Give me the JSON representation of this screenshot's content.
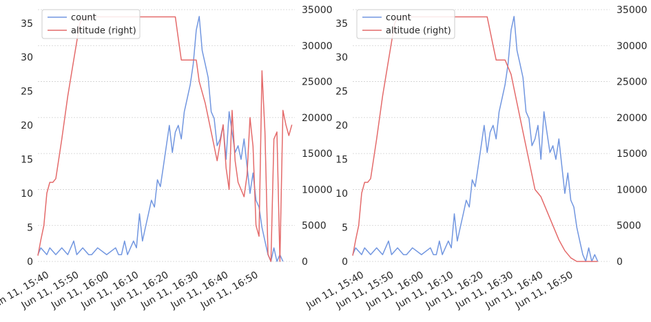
{
  "colors": {
    "count": "#7196e0",
    "altitude": "#e46a6a",
    "grid": "#cfcfcf",
    "text": "#262626",
    "legend_border": "#cccccc"
  },
  "chart_data": [
    {
      "type": "line",
      "panel": "left",
      "grid": "horizontal",
      "legend": "top-left",
      "legend_entries": [
        "count",
        "altitude (right)"
      ],
      "x_ticks": [
        "Jun 11, 15:40",
        "Jun 11, 15:50",
        "Jun 11, 16:00",
        "Jun 11, 16:10",
        "Jun 11, 16:20",
        "Jun 11, 16:30",
        "Jun 11, 16:40",
        "Jun 11, 16:50"
      ],
      "y_left_ticks": [
        "0",
        "5",
        "10",
        "15",
        "20",
        "25",
        "30",
        "35"
      ],
      "y_right_ticks": [
        "0",
        "5000",
        "10000",
        "15000",
        "20000",
        "25000",
        "30000",
        "35000"
      ],
      "ylim_left": [
        0,
        37
      ],
      "ylim_right": [
        0,
        35000
      ],
      "series": [
        {
          "name": "count",
          "axis": "left",
          "x": [
            "15:37",
            "15:38",
            "15:40",
            "15:41",
            "15:43",
            "15:45",
            "15:47",
            "15:49",
            "15:50",
            "15:52",
            "15:54",
            "15:55",
            "15:57",
            "16:00",
            "16:03",
            "16:04",
            "16:05",
            "16:06",
            "16:07",
            "16:09",
            "16:10",
            "16:11",
            "16:12",
            "16:13",
            "16:14",
            "16:15",
            "16:16",
            "16:17",
            "16:18",
            "16:19",
            "16:20",
            "16:21",
            "16:22",
            "16:23",
            "16:24",
            "16:25",
            "16:26",
            "16:27",
            "16:28",
            "16:29",
            "16:30",
            "16:31",
            "16:32",
            "16:33",
            "16:34",
            "16:35",
            "16:36",
            "16:37",
            "16:38",
            "16:39",
            "16:40",
            "16:41",
            "16:42",
            "16:43",
            "16:44",
            "16:45",
            "16:46",
            "16:47",
            "16:48",
            "16:49",
            "16:50",
            "16:51",
            "16:52",
            "16:53",
            "16:54",
            "16:55",
            "16:56",
            "16:57",
            "16:58",
            "16:59"
          ],
          "y": [
            1,
            2,
            1,
            2,
            1,
            2,
            1,
            3,
            1,
            2,
            1,
            1,
            2,
            1,
            2,
            1,
            1,
            3,
            1,
            3,
            2,
            7,
            3,
            5,
            7,
            9,
            8,
            12,
            11,
            14,
            17,
            20,
            16,
            19,
            20,
            18,
            22,
            24,
            26,
            29,
            34,
            36,
            31,
            29,
            27,
            22,
            21,
            17,
            18,
            20,
            15,
            22,
            19,
            16,
            17,
            15,
            18,
            14,
            10,
            13,
            9,
            8,
            5,
            3,
            1,
            0,
            2,
            0,
            1,
            0
          ]
        },
        {
          "name": "altitude (right)",
          "axis": "right",
          "x": [
            "15:37",
            "15:38",
            "15:39",
            "15:40",
            "15:41",
            "15:42",
            "15:43",
            "15:45",
            "15:47",
            "15:49",
            "15:51",
            "15:52",
            "15:55",
            "16:00",
            "16:05",
            "16:10",
            "16:15",
            "16:20",
            "16:23",
            "16:24",
            "16:25",
            "16:26",
            "16:27",
            "16:28",
            "16:30",
            "16:31",
            "16:33",
            "16:35",
            "16:37",
            "16:39",
            "16:40",
            "16:41",
            "16:42",
            "16:43",
            "16:44",
            "16:45",
            "16:46",
            "16:47",
            "16:48",
            "16:49",
            "16:50",
            "16:51",
            "16:52",
            "16:53",
            "16:54",
            "16:55",
            "16:56",
            "16:57",
            "16:58",
            "16:59",
            "17:00",
            "17:01",
            "17:02"
          ],
          "y": [
            800,
            3000,
            5000,
            9500,
            11000,
            11000,
            11500,
            17000,
            23000,
            28000,
            33000,
            34000,
            34000,
            34000,
            34000,
            34000,
            34000,
            34000,
            34000,
            31000,
            28000,
            28000,
            28000,
            28000,
            28000,
            25000,
            22000,
            18000,
            14000,
            19000,
            13000,
            10000,
            21000,
            14000,
            11000,
            10000,
            9000,
            12000,
            20000,
            16000,
            5000,
            3500,
            26500,
            18000,
            1000,
            0,
            17000,
            18000,
            0,
            21000,
            19000,
            17500,
            19000
          ]
        }
      ]
    },
    {
      "type": "line",
      "panel": "right",
      "grid": "horizontal",
      "legend": "top-left",
      "legend_entries": [
        "count",
        "altitude (right)"
      ],
      "x_ticks": [
        "Jun 11, 15:40",
        "Jun 11, 15:50",
        "Jun 11, 16:00",
        "Jun 11, 16:10",
        "Jun 11, 16:20",
        "Jun 11, 16:30",
        "Jun 11, 16:40",
        "Jun 11, 16:50"
      ],
      "y_left_ticks": [
        "0",
        "5",
        "10",
        "15",
        "20",
        "25",
        "30",
        "35"
      ],
      "y_right_ticks": [
        "0",
        "5000",
        "10000",
        "15000",
        "20000",
        "25000",
        "30000",
        "35000"
      ],
      "ylim_left": [
        0,
        37
      ],
      "ylim_right": [
        0,
        35000
      ],
      "series": [
        {
          "name": "count",
          "axis": "left",
          "x": [
            "15:37",
            "15:38",
            "15:40",
            "15:41",
            "15:43",
            "15:45",
            "15:47",
            "15:49",
            "15:50",
            "15:52",
            "15:54",
            "15:55",
            "15:57",
            "16:00",
            "16:03",
            "16:04",
            "16:05",
            "16:06",
            "16:07",
            "16:09",
            "16:10",
            "16:11",
            "16:12",
            "16:13",
            "16:14",
            "16:15",
            "16:16",
            "16:17",
            "16:18",
            "16:19",
            "16:20",
            "16:21",
            "16:22",
            "16:23",
            "16:24",
            "16:25",
            "16:26",
            "16:27",
            "16:28",
            "16:29",
            "16:30",
            "16:31",
            "16:32",
            "16:33",
            "16:34",
            "16:35",
            "16:36",
            "16:37",
            "16:38",
            "16:39",
            "16:40",
            "16:41",
            "16:42",
            "16:43",
            "16:44",
            "16:45",
            "16:46",
            "16:47",
            "16:48",
            "16:49",
            "16:50",
            "16:51",
            "16:52",
            "16:53",
            "16:54",
            "16:55",
            "16:56",
            "16:57",
            "16:58",
            "16:59"
          ],
          "y": [
            1,
            2,
            1,
            2,
            1,
            2,
            1,
            3,
            1,
            2,
            1,
            1,
            2,
            1,
            2,
            1,
            1,
            3,
            1,
            3,
            2,
            7,
            3,
            5,
            7,
            9,
            8,
            12,
            11,
            14,
            17,
            20,
            16,
            19,
            20,
            18,
            22,
            24,
            26,
            29,
            34,
            36,
            31,
            29,
            27,
            22,
            21,
            17,
            18,
            20,
            15,
            22,
            19,
            16,
            17,
            15,
            18,
            14,
            10,
            13,
            9,
            8,
            5,
            3,
            1,
            0,
            2,
            0,
            1,
            0
          ]
        },
        {
          "name": "altitude (right)",
          "axis": "right",
          "x": [
            "15:37",
            "15:38",
            "15:39",
            "15:40",
            "15:41",
            "15:42",
            "15:43",
            "15:45",
            "15:47",
            "15:49",
            "15:51",
            "15:52",
            "15:55",
            "16:00",
            "16:05",
            "16:10",
            "16:15",
            "16:20",
            "16:21",
            "16:22",
            "16:23",
            "16:24",
            "16:25",
            "16:26",
            "16:27",
            "16:28",
            "16:30",
            "16:32",
            "16:34",
            "16:36",
            "16:38",
            "16:40",
            "16:42",
            "16:44",
            "16:46",
            "16:48",
            "16:50",
            "16:52",
            "16:54",
            "16:55",
            "16:56",
            "16:57",
            "16:58",
            "16:59"
          ],
          "y": [
            800,
            3000,
            5000,
            9500,
            11000,
            11000,
            11500,
            17000,
            23000,
            28000,
            33000,
            34000,
            34000,
            34000,
            34000,
            34000,
            34000,
            34000,
            34000,
            34000,
            32000,
            30000,
            28000,
            28000,
            28000,
            28000,
            26000,
            22000,
            18000,
            14000,
            10000,
            9000,
            7000,
            5000,
            3000,
            1500,
            500,
            0,
            0,
            0,
            0,
            0,
            0,
            0
          ]
        }
      ]
    }
  ]
}
